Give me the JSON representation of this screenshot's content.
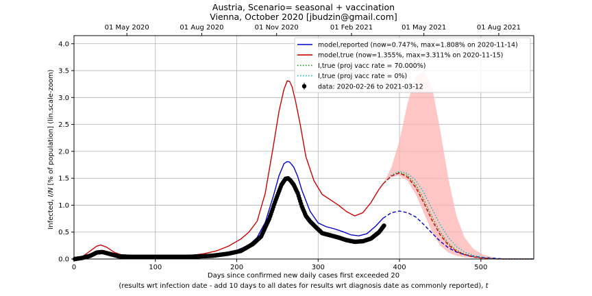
{
  "chart_data": {
    "type": "line",
    "title": "Austria, Scenario= seasonal + vaccination",
    "subtitle": "Vienna, October 2020 [jbudzin@gmail.com]",
    "xlabel": "Days since confirmed new daily cases first exceeded 20",
    "xlabel2_pre": "(results wrt infection date - add 10 days to all dates for results wrt diagnosis date as commonly reported), ",
    "xlabel2_var": "t",
    "ylabel_pre": "Infected, ",
    "ylabel_var": "I/N",
    "ylabel_post": " [% of population] (lin.scale-zoom)",
    "xlim": [
      0,
      565
    ],
    "ylim": [
      0,
      4.15
    ],
    "xticks": [
      0,
      100,
      200,
      300,
      400,
      500
    ],
    "yticks": [
      0.0,
      0.5,
      1.0,
      1.5,
      2.0,
      2.5,
      3.0,
      3.5,
      4.0
    ],
    "top_axis": [
      {
        "label": "01 May 2020",
        "x": 65
      },
      {
        "label": "01 Aug 2020",
        "x": 157
      },
      {
        "label": "01 Nov 2020",
        "x": 249
      },
      {
        "label": "01 Feb 2021",
        "x": 341
      },
      {
        "label": "01 May 2021",
        "x": 430
      },
      {
        "label": "01 Aug 2021",
        "x": 522
      }
    ],
    "grid": true,
    "legend_position": "top-right",
    "legend": [
      {
        "label": "model,reported (now=0.747%, max=1.808% on 2020-11-14)",
        "color": "#0000cc",
        "style": "solid"
      },
      {
        "label": "model,true (now=1.355%, max=3.311% on 2020-11-15)",
        "color": "#cc0000",
        "style": "solid"
      },
      {
        "label": "I,true (proj vacc rate = 70.000%)",
        "color": "#009900",
        "style": "dotted"
      },
      {
        "label": "I,true (proj vacc rate = 0%)",
        "color": "#00bbbb",
        "style": "dotted"
      },
      {
        "label": "data: 2020-02-26 to 2021-03-12",
        "color": "#000000",
        "style": "errorbar"
      }
    ],
    "series": [
      {
        "key": "model_reported",
        "color": "#0000cc",
        "x": [
          0,
          10,
          20,
          28,
          35,
          45,
          55,
          70,
          90,
          110,
          130,
          150,
          170,
          185,
          200,
          215,
          225,
          235,
          245,
          252,
          258,
          262,
          265,
          270,
          275,
          280,
          290,
          300,
          310,
          320,
          330,
          340,
          350,
          360,
          370,
          380
        ],
        "y": [
          0.0,
          0.02,
          0.08,
          0.13,
          0.15,
          0.11,
          0.07,
          0.05,
          0.04,
          0.04,
          0.04,
          0.05,
          0.07,
          0.1,
          0.16,
          0.26,
          0.4,
          0.68,
          1.17,
          1.55,
          1.77,
          1.81,
          1.8,
          1.71,
          1.53,
          1.28,
          0.89,
          0.67,
          0.6,
          0.56,
          0.51,
          0.45,
          0.43,
          0.47,
          0.6,
          0.76
        ]
      },
      {
        "key": "model_reported_proj",
        "color": "#0000cc",
        "dashed": true,
        "x": [
          380,
          390,
          400,
          410,
          420,
          430,
          440,
          450,
          460,
          470,
          480,
          490,
          500,
          510,
          520,
          530,
          540,
          550,
          565
        ],
        "y": [
          0.76,
          0.86,
          0.89,
          0.86,
          0.78,
          0.64,
          0.48,
          0.33,
          0.21,
          0.13,
          0.08,
          0.05,
          0.03,
          0.02,
          0.01,
          0.0,
          0.0,
          0.0,
          0.0
        ]
      },
      {
        "key": "model_true",
        "color": "#cc0000",
        "x": [
          0,
          10,
          20,
          28,
          33,
          40,
          50,
          60,
          80,
          100,
          120,
          140,
          160,
          175,
          190,
          205,
          215,
          225,
          235,
          245,
          252,
          258,
          262,
          265,
          268,
          272,
          278,
          285,
          295,
          305,
          315,
          325,
          335,
          345,
          355,
          365,
          375,
          380
        ],
        "y": [
          0.0,
          0.04,
          0.15,
          0.24,
          0.26,
          0.22,
          0.12,
          0.07,
          0.05,
          0.04,
          0.05,
          0.06,
          0.1,
          0.15,
          0.24,
          0.37,
          0.5,
          0.7,
          1.22,
          2.1,
          2.75,
          3.15,
          3.31,
          3.3,
          3.2,
          2.95,
          2.5,
          1.9,
          1.45,
          1.2,
          1.1,
          1.0,
          0.88,
          0.8,
          0.86,
          1.05,
          1.3,
          1.4
        ]
      },
      {
        "key": "true_vacc70",
        "color": "#009900",
        "dotted": true,
        "x": [
          380,
          390,
          400,
          410,
          420,
          430,
          440,
          450,
          460,
          470,
          480,
          490,
          500,
          510,
          520,
          530,
          540,
          550,
          565
        ],
        "y": [
          1.4,
          1.55,
          1.61,
          1.55,
          1.38,
          1.1,
          0.78,
          0.5,
          0.29,
          0.16,
          0.09,
          0.05,
          0.03,
          0.02,
          0.01,
          0.0,
          0.0,
          0.0,
          0.0
        ]
      },
      {
        "key": "true_vacc0",
        "color": "#00bbbb",
        "dotted": true,
        "x": [
          380,
          390,
          400,
          410,
          420,
          430,
          440,
          450,
          460,
          470,
          480,
          490,
          500,
          510,
          520,
          530,
          540,
          550,
          565
        ],
        "y": [
          1.4,
          1.56,
          1.63,
          1.59,
          1.46,
          1.23,
          0.93,
          0.64,
          0.4,
          0.23,
          0.13,
          0.07,
          0.04,
          0.02,
          0.01,
          0.0,
          0.0,
          0.0,
          0.0
        ]
      },
      {
        "key": "true_proj_dashed",
        "color": "#cc0000",
        "dashed": true,
        "x": [
          380,
          390,
          400,
          410,
          420,
          430,
          440,
          450,
          460,
          470,
          480,
          490,
          500,
          510,
          520,
          530,
          540,
          550,
          565
        ],
        "y": [
          1.4,
          1.54,
          1.6,
          1.52,
          1.33,
          1.04,
          0.72,
          0.45,
          0.26,
          0.14,
          0.08,
          0.04,
          0.02,
          0.01,
          0.0,
          0.0,
          0.0,
          0.0,
          0.0
        ]
      }
    ],
    "band": {
      "color": "#ffb3b3",
      "x": [
        380,
        390,
        400,
        410,
        420,
        430,
        440,
        450,
        460,
        470,
        480,
        490,
        500,
        510,
        520,
        530,
        540
      ],
      "lower": [
        1.4,
        1.52,
        1.55,
        1.45,
        1.2,
        0.85,
        0.5,
        0.25,
        0.12,
        0.06,
        0.03,
        0.02,
        0.01,
        0.0,
        0.0,
        0.0,
        0.0
      ],
      "upper": [
        1.4,
        1.7,
        2.2,
        2.9,
        3.4,
        3.5,
        3.2,
        2.4,
        1.5,
        0.8,
        0.4,
        0.2,
        0.1,
        0.05,
        0.02,
        0.01,
        0.0
      ]
    },
    "data_points": {
      "x_start": 1,
      "x_end": 381,
      "anchors_x": [
        1,
        10,
        20,
        28,
        35,
        45,
        55,
        70,
        100,
        140,
        170,
        190,
        205,
        220,
        230,
        240,
        248,
        255,
        260,
        263,
        266,
        270,
        275,
        280,
        285,
        290,
        298,
        305,
        315,
        325,
        335,
        345,
        355,
        365,
        375,
        381
      ],
      "anchors_y": [
        0.0,
        0.02,
        0.06,
        0.12,
        0.13,
        0.09,
        0.05,
        0.04,
        0.04,
        0.04,
        0.06,
        0.1,
        0.15,
        0.28,
        0.42,
        0.75,
        1.1,
        1.38,
        1.49,
        1.5,
        1.46,
        1.38,
        1.22,
        0.98,
        0.8,
        0.7,
        0.58,
        0.48,
        0.44,
        0.4,
        0.35,
        0.32,
        0.33,
        0.38,
        0.5,
        0.62
      ]
    }
  }
}
